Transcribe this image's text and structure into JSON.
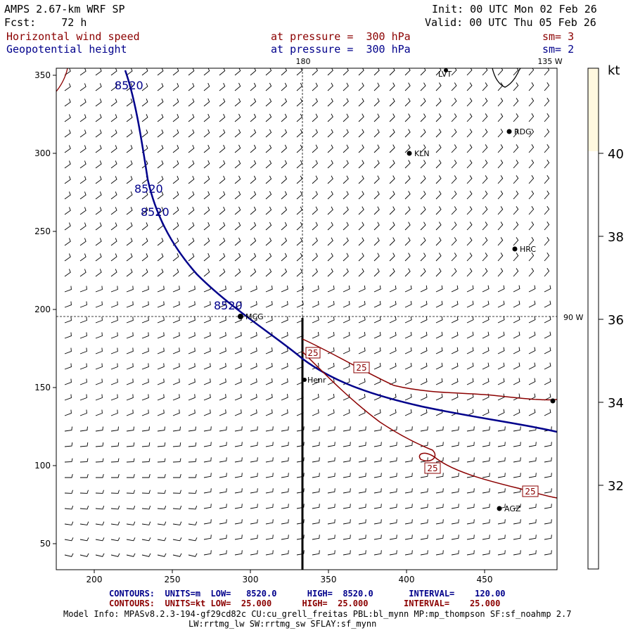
{
  "header": {
    "model": "AMPS 2.67-km WRF SP",
    "init": "Init: 00 UTC Mon 02 Feb 26",
    "fcst": "Fcst:    72 h",
    "valid": "Valid: 00 UTC Thu 05 Feb 26",
    "field1": "Horizontal wind speed",
    "pressure1": "at pressure =  300 hPa",
    "sm1": "sm= 3",
    "field2": "Geopotential height",
    "pressure2": "at pressure =  300 hPa",
    "sm2": "sm= 2"
  },
  "map": {
    "longitude_labels": {
      "top_180": "180",
      "top_135w": "135 W",
      "right_90w": "90 W"
    },
    "x_ticks": [
      "200",
      "250",
      "300",
      "350",
      "400",
      "450"
    ],
    "y_ticks": [
      "350",
      "300",
      "250",
      "200",
      "150",
      "100",
      "50"
    ],
    "contour_labels": {
      "height": [
        "8520",
        "8520",
        "8520",
        "8520"
      ],
      "wind": [
        "25",
        "25",
        "25",
        "25"
      ]
    },
    "stations": [
      {
        "name": "RDG"
      },
      {
        "name": "KLN"
      },
      {
        "name": "HRC"
      },
      {
        "name": "MCG"
      },
      {
        "name": "Henr"
      },
      {
        "name": "AGZ"
      },
      {
        "name": "LVT"
      }
    ]
  },
  "colorbar": {
    "unit": "kt",
    "ticks": [
      "40",
      "38",
      "36",
      "34",
      "32"
    ],
    "fill_color": "#fff8e0"
  },
  "footer": {
    "contours1": "CONTOURS:  UNITS=m  LOW=   8520.0      HIGH=  8520.0       INTERVAL=    120.00",
    "contours2": "CONTOURS:  UNITS=kt LOW=  25.000      HIGH=  25.000       INTERVAL=    25.000",
    "model_info": "Model Info: MPASv8.2.3-194-gf29cd82c CU:cu_grell_freitas PBL:bl_mynn MP:mp_thompson SF:sf_noahmp 2.7",
    "model_info2": "LW:rrtmg_lw SW:rrtmg_sw SFLAY:sf_mynn"
  },
  "colors": {
    "height_contour": "#00008b",
    "wind_contour": "#8b0000"
  }
}
